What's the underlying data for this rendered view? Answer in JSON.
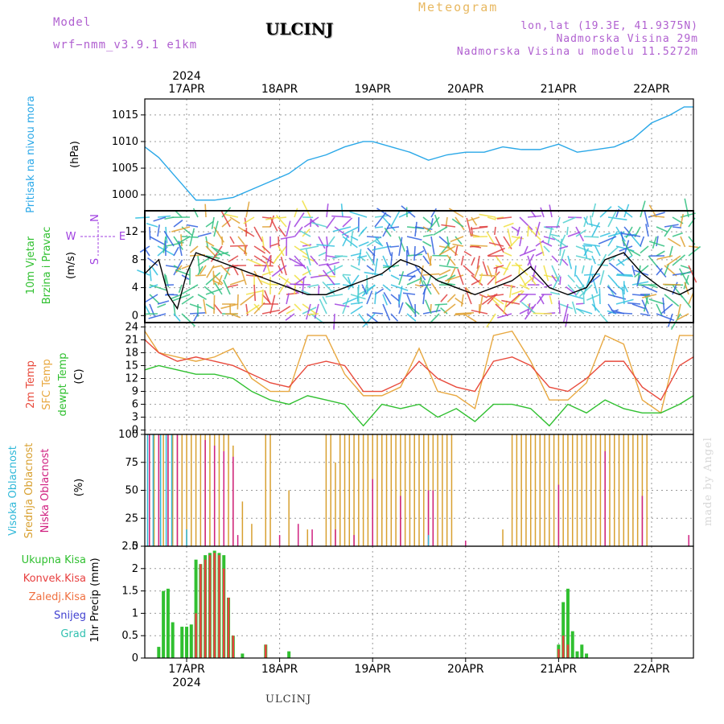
{
  "header": {
    "model_label": "Model",
    "model_name": "wrf−nmm_v3.9.1  e1km",
    "station": "ULCINJ",
    "meteogram": "Meteogram",
    "lonlat": "lon,lat (19.3E, 41.9375N)",
    "elevation": "Nadmorska Visina 29m",
    "model_elevation": "Nadmorska Visina u modelu 11.5272m",
    "credit": "made by Angel",
    "bottom_station": "ULCINJ"
  },
  "colors": {
    "pressure": "#2aa8e8",
    "t2m": "#e84a3c",
    "sfc": "#e8a840",
    "dewpt": "#30c030",
    "high_cloud": "#30b8d8",
    "mid_cloud": "#d8a030",
    "low_cloud": "#d02080",
    "total_precip": "#30c030",
    "conv_precip": "#e84040"
  },
  "x_axis": {
    "year": "2024",
    "dates": [
      "17APR",
      "18APR",
      "19APR",
      "20APR",
      "21APR",
      "22APR"
    ],
    "start_day": 16.55,
    "end_day": 22.45
  },
  "chart_data": [
    {
      "type": "line",
      "panel": "pressure",
      "ylabel": "Pritisak na nivou mora",
      "unit": "(hPa)",
      "yticks": [
        "1000",
        "1005",
        "1010",
        "1015"
      ],
      "ylim": [
        997,
        1018
      ],
      "series": [
        {
          "x": [
            16.55,
            16.7,
            16.85,
            17.0,
            17.1,
            17.3,
            17.5,
            17.7,
            17.9,
            18.1,
            18.3,
            18.5,
            18.7,
            18.9,
            19.0,
            19.2,
            19.4,
            19.6,
            19.8,
            20.0,
            20.2,
            20.4,
            20.6,
            20.8,
            21.0,
            21.2,
            21.4,
            21.6,
            21.8,
            22.0,
            22.2,
            22.35,
            22.45
          ],
          "y": [
            1009,
            1007,
            1004,
            1001,
            999,
            999,
            999.5,
            1001,
            1002.5,
            1004,
            1006.5,
            1007.5,
            1009,
            1010,
            1010,
            1009,
            1008,
            1006.5,
            1007.5,
            1008,
            1008,
            1009,
            1008.5,
            1008.5,
            1009.5,
            1008,
            1008.5,
            1009,
            1010.5,
            1013.5,
            1015,
            1016.5,
            1016.5
          ]
        }
      ]
    },
    {
      "type": "line",
      "panel": "wind",
      "ylabel": "10m Vjetar Brzina i Pravac",
      "unit": "(m/s)",
      "compass": [
        "N",
        "W",
        "E",
        "S"
      ],
      "yticks": [
        "0",
        "4",
        "8",
        "12"
      ],
      "ylim": [
        -1,
        15
      ],
      "series": [
        {
          "x": [
            16.55,
            16.7,
            16.8,
            16.9,
            17.0,
            17.1,
            17.3,
            17.5,
            17.7,
            17.9,
            18.1,
            18.3,
            18.5,
            18.7,
            18.9,
            19.1,
            19.3,
            19.5,
            19.7,
            19.9,
            20.1,
            20.3,
            20.5,
            20.7,
            20.9,
            21.1,
            21.3,
            21.5,
            21.7,
            21.9,
            22.1,
            22.3,
            22.45
          ],
          "y": [
            6,
            8,
            3,
            1,
            6,
            9,
            8,
            7,
            6,
            5,
            4,
            3,
            3,
            4,
            5,
            6,
            8,
            7,
            5,
            4,
            3,
            4,
            5,
            7,
            4,
            3,
            4,
            8,
            9,
            6,
            4,
            3,
            4
          ]
        }
      ]
    },
    {
      "type": "line",
      "panel": "temperature",
      "ylabels": [
        "2m Temp",
        "SFC Temp",
        "dewpt Temp"
      ],
      "unit": "(C)",
      "yticks": [
        "0",
        "3",
        "6",
        "9",
        "12",
        "15",
        "18",
        "21",
        "24"
      ],
      "ylim": [
        -1,
        25
      ],
      "series": [
        {
          "x": [
            16.55,
            16.7,
            16.9,
            17.1,
            17.3,
            17.5,
            17.7,
            17.9,
            18.1,
            18.3,
            18.5,
            18.7,
            18.9,
            19.1,
            19.3,
            19.5,
            19.7,
            19.9,
            20.1,
            20.3,
            20.5,
            20.7,
            20.9,
            21.1,
            21.3,
            21.5,
            21.7,
            21.9,
            22.1,
            22.3,
            22.45
          ],
          "y": [
            21,
            18,
            16,
            17,
            16,
            15,
            13,
            11,
            10,
            15,
            16,
            15,
            9,
            9,
            11,
            16,
            12,
            10,
            9,
            16,
            17,
            15,
            10,
            9,
            12,
            16,
            16,
            10,
            7,
            15,
            17
          ]
        },
        {
          "x": [
            16.55,
            16.7,
            16.9,
            17.1,
            17.3,
            17.5,
            17.7,
            17.9,
            18.1,
            18.3,
            18.5,
            18.7,
            18.9,
            19.1,
            19.3,
            19.5,
            19.7,
            19.9,
            20.1,
            20.3,
            20.5,
            20.7,
            20.9,
            21.1,
            21.3,
            21.5,
            21.7,
            21.9,
            22.1,
            22.3,
            22.45
          ],
          "y": [
            23,
            18,
            17,
            16,
            17,
            19,
            12,
            9,
            9,
            22,
            22,
            13,
            8,
            8,
            10,
            19,
            9,
            8,
            5,
            22,
            23,
            16,
            7,
            7,
            11,
            22,
            20,
            7,
            4,
            22,
            22
          ]
        },
        {
          "x": [
            16.55,
            16.7,
            16.9,
            17.1,
            17.3,
            17.5,
            17.7,
            17.9,
            18.1,
            18.3,
            18.5,
            18.7,
            18.9,
            19.1,
            19.3,
            19.5,
            19.7,
            19.9,
            20.1,
            20.3,
            20.5,
            20.7,
            20.9,
            21.1,
            21.3,
            21.5,
            21.7,
            21.9,
            22.1,
            22.3,
            22.45
          ],
          "y": [
            14,
            15,
            14,
            13,
            13,
            12,
            9,
            7,
            6,
            8,
            7,
            6,
            1,
            6,
            5,
            6,
            3,
            5,
            2,
            6,
            6,
            5,
            1,
            6,
            4,
            7,
            5,
            4,
            4,
            6,
            8
          ]
        }
      ]
    },
    {
      "type": "bar",
      "panel": "cloud",
      "ylabels": [
        "Visoka Oblacnost",
        "Srednja Oblacnost",
        "Niska Oblacnost"
      ],
      "unit": "(%)",
      "yticks": [
        "0",
        "25",
        "50",
        "75",
        "100"
      ],
      "ylim": [
        0,
        100
      ],
      "series": [
        {
          "name": "Srednja Oblacnost",
          "x": [
            16.6,
            16.65,
            16.7,
            16.75,
            16.8,
            16.85,
            16.9,
            16.95,
            17.0,
            17.05,
            17.1,
            17.15,
            17.2,
            17.25,
            17.3,
            17.35,
            17.4,
            17.45,
            17.5,
            17.6,
            17.7,
            17.85,
            17.9,
            18.1,
            18.3,
            18.5,
            18.55,
            18.6,
            18.65,
            18.7,
            18.75,
            18.8,
            18.85,
            18.9,
            18.95,
            19.0,
            19.05,
            19.1,
            19.15,
            19.2,
            19.25,
            19.3,
            19.35,
            19.4,
            19.45,
            19.5,
            19.55,
            19.6,
            19.65,
            19.7,
            19.75,
            19.8,
            19.85,
            20.4,
            20.5,
            20.55,
            20.6,
            20.65,
            20.7,
            20.75,
            20.8,
            20.85,
            20.9,
            20.95,
            21.0,
            21.05,
            21.1,
            21.15,
            21.2,
            21.25,
            21.3,
            21.35,
            21.4,
            21.45,
            21.5,
            21.55,
            21.6,
            21.65,
            21.7,
            21.75,
            21.8,
            21.85,
            21.9,
            21.95
          ],
          "values": [
            100,
            100,
            100,
            100,
            100,
            100,
            100,
            100,
            100,
            100,
            100,
            100,
            100,
            100,
            100,
            100,
            100,
            100,
            90,
            40,
            20,
            100,
            100,
            50,
            15,
            100,
            100,
            75,
            100,
            100,
            100,
            100,
            100,
            100,
            100,
            100,
            100,
            100,
            100,
            100,
            100,
            100,
            100,
            100,
            100,
            100,
            100,
            100,
            100,
            100,
            100,
            100,
            100,
            15,
            100,
            100,
            100,
            100,
            100,
            100,
            100,
            100,
            100,
            100,
            100,
            100,
            100,
            100,
            100,
            100,
            100,
            100,
            100,
            100,
            100,
            100,
            100,
            100,
            100,
            100,
            100,
            100,
            100,
            100
          ]
        },
        {
          "name": "Niska Oblacnost",
          "x": [
            16.6,
            16.7,
            16.8,
            16.9,
            17.2,
            17.3,
            17.4,
            17.5,
            17.55,
            18.0,
            18.2,
            18.35,
            18.6,
            18.8,
            19.0,
            19.3,
            19.6,
            19.65,
            20.0,
            21.0,
            21.5,
            21.9,
            22.4
          ],
          "values": [
            100,
            100,
            100,
            100,
            95,
            90,
            85,
            80,
            10,
            10,
            20,
            15,
            15,
            10,
            60,
            45,
            50,
            50,
            5,
            55,
            85,
            45,
            10
          ]
        },
        {
          "name": "Visoka Oblacnost",
          "x": [
            16.58,
            16.64,
            16.72,
            16.78,
            16.84,
            17.0,
            19.6
          ],
          "values": [
            100,
            100,
            100,
            100,
            100,
            15,
            10
          ]
        }
      ]
    },
    {
      "type": "bar",
      "panel": "precip",
      "ylabels": [
        "Ukupna Kisa",
        "Konvek.Kisa",
        "Zaledj.Kisa",
        "Snijeg",
        "Grad"
      ],
      "unit": "1hr Precip (mm)",
      "yticks": [
        "0",
        "0.5",
        "1",
        "1.5",
        "2",
        "2.5"
      ],
      "ylim": [
        0,
        2.5
      ],
      "series": [
        {
          "name": "Ukupna Kisa",
          "x": [
            16.7,
            16.75,
            16.8,
            16.85,
            16.95,
            17.0,
            17.05,
            17.1,
            17.15,
            17.2,
            17.25,
            17.3,
            17.35,
            17.4,
            17.45,
            17.5,
            17.6,
            17.85,
            18.1,
            21.0,
            21.05,
            21.1,
            21.15,
            21.2,
            21.25,
            21.3
          ],
          "values": [
            0.25,
            1.5,
            1.55,
            0.8,
            0.7,
            0.7,
            0.75,
            2.2,
            2.1,
            2.3,
            2.35,
            2.4,
            2.35,
            2.3,
            1.35,
            0.5,
            0.1,
            0.3,
            0.15,
            0.3,
            1.25,
            1.55,
            0.6,
            0.15,
            0.3,
            0.1
          ]
        },
        {
          "name": "Konvek.Kisa",
          "x": [
            17.1,
            17.15,
            17.2,
            17.25,
            17.3,
            17.35,
            17.4,
            17.45,
            17.5,
            17.85,
            21.0,
            21.05,
            21.1
          ],
          "values": [
            1.0,
            2.1,
            2.2,
            2.3,
            2.35,
            2.3,
            2.0,
            1.35,
            0.5,
            0.3,
            0.2,
            0.5,
            0.3
          ]
        }
      ]
    }
  ]
}
